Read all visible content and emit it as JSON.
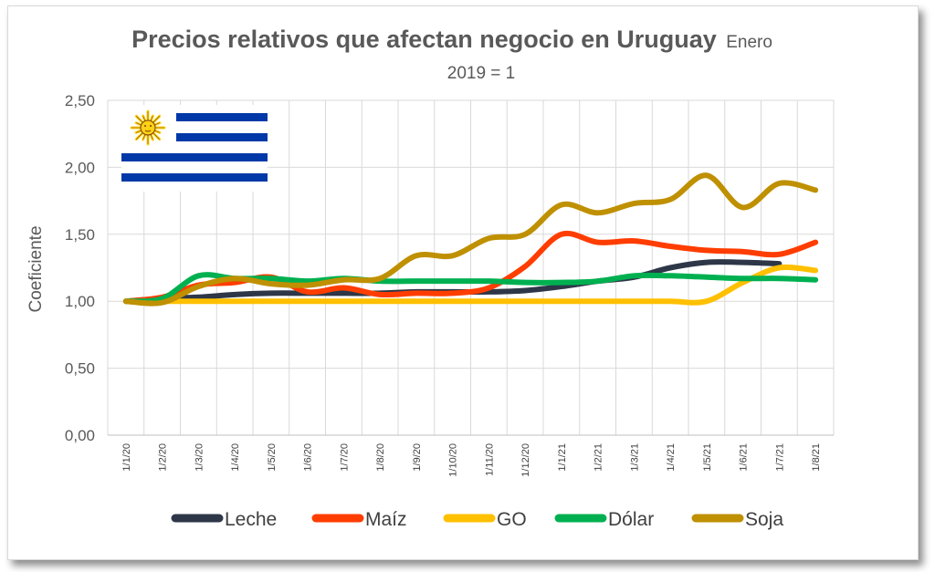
{
  "chart_data": {
    "type": "line",
    "title": "Precios relativos que afectan negocio en Uruguay",
    "title_suffix": "Enero",
    "subtitle": "2019 = 1",
    "ylabel": "Coeficiente",
    "xlabel": "",
    "ylim": [
      0,
      2.5
    ],
    "yticks": [
      "0,00",
      "0,50",
      "1,00",
      "1,50",
      "2,00",
      "2,50"
    ],
    "ytick_values": [
      0,
      0.5,
      1,
      1.5,
      2,
      2.5
    ],
    "categories": [
      "1/1/20",
      "1/2/20",
      "1/3/20",
      "1/4/20",
      "1/5/20",
      "1/6/20",
      "1/7/20",
      "1/8/20",
      "1/9/20",
      "1/10/20",
      "1/11/20",
      "1/12/20",
      "1/1/21",
      "1/2/21",
      "1/3/21",
      "1/4/21",
      "1/5/21",
      "1/6/21",
      "1/7/21",
      "1/8/21"
    ],
    "grid": true,
    "legend_position": "bottom",
    "series": [
      {
        "name": "Leche",
        "color": "#2d3748",
        "values": [
          1.0,
          1.02,
          1.03,
          1.05,
          1.06,
          1.06,
          1.06,
          1.06,
          1.07,
          1.07,
          1.07,
          1.08,
          1.11,
          1.15,
          1.18,
          1.25,
          1.29,
          1.29,
          1.28,
          null
        ]
      },
      {
        "name": "Maíz",
        "color": "#ff3d00",
        "values": [
          1.0,
          1.03,
          1.12,
          1.14,
          1.18,
          1.07,
          1.1,
          1.05,
          1.06,
          1.06,
          1.1,
          1.26,
          1.5,
          1.44,
          1.45,
          1.41,
          1.38,
          1.37,
          1.35,
          1.44
        ]
      },
      {
        "name": "GO",
        "color": "#ffc000",
        "values": [
          1.0,
          1.0,
          1.0,
          1.0,
          1.0,
          1.0,
          1.0,
          1.0,
          1.0,
          1.0,
          1.0,
          1.0,
          1.0,
          1.0,
          1.0,
          1.0,
          1.0,
          1.14,
          1.25,
          1.23
        ]
      },
      {
        "name": "Dólar",
        "color": "#00b050",
        "values": [
          1.0,
          1.02,
          1.19,
          1.17,
          1.17,
          1.15,
          1.17,
          1.15,
          1.15,
          1.15,
          1.15,
          1.14,
          1.14,
          1.15,
          1.19,
          1.19,
          1.18,
          1.17,
          1.17,
          1.16
        ]
      },
      {
        "name": "Soja",
        "color": "#bf9000",
        "values": [
          1.0,
          0.99,
          1.11,
          1.17,
          1.13,
          1.12,
          1.16,
          1.17,
          1.34,
          1.34,
          1.47,
          1.5,
          1.72,
          1.66,
          1.73,
          1.76,
          1.94,
          1.7,
          1.88,
          1.83
        ]
      }
    ]
  }
}
